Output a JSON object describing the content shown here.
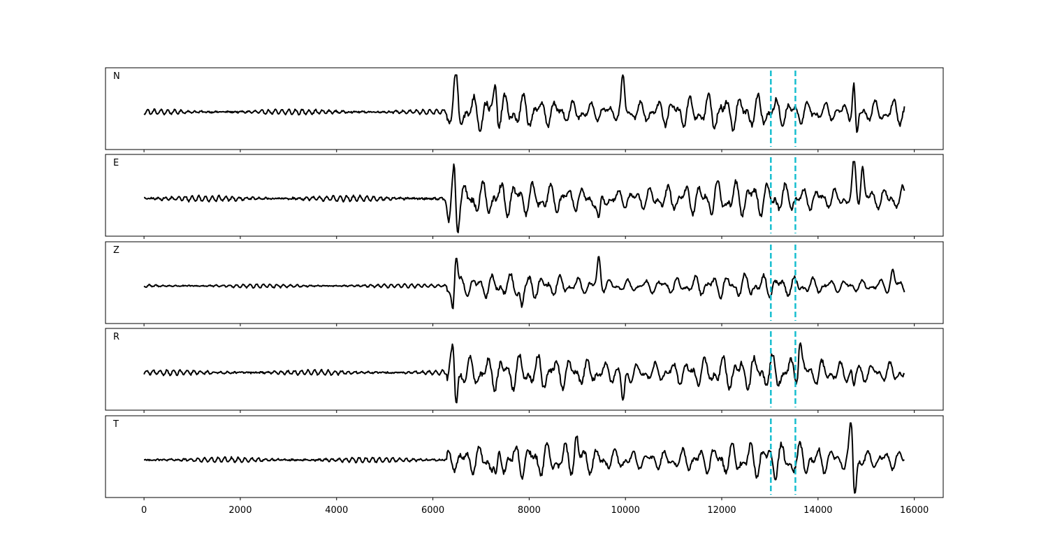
{
  "chart_data": {
    "type": "line",
    "title": "",
    "xlabel": "",
    "ylabel": "",
    "xlim": [
      -800,
      16600
    ],
    "x_ticks": [
      0,
      2000,
      4000,
      6000,
      8000,
      10000,
      12000,
      14000,
      16000
    ],
    "x_tick_labels": [
      "0",
      "2000",
      "4000",
      "6000",
      "8000",
      "10000",
      "12000",
      "14000",
      "16000"
    ],
    "sample_start": 0,
    "sample_end": 15800,
    "signal_onset": 6300,
    "grid": false,
    "colors": {
      "trace": "#000000",
      "marker": "#17becf"
    },
    "markers": [
      {
        "x": 13020,
        "style": "dashed"
      },
      {
        "x": 13530,
        "style": "dashed"
      }
    ],
    "panels": [
      {
        "label": "N",
        "noise_amp": 0.07,
        "signal_amp": 0.45,
        "spikes": [
          [
            6480,
            0.85
          ],
          [
            7300,
            0.75
          ],
          [
            9950,
            0.85
          ],
          [
            14750,
            1.0
          ],
          [
            14800,
            -1.0
          ]
        ]
      },
      {
        "label": "E",
        "noise_amp": 0.08,
        "signal_amp": 0.45,
        "spikes": [
          [
            6330,
            -0.75
          ],
          [
            6450,
            1.0
          ],
          [
            6500,
            -0.8
          ],
          [
            9450,
            -0.8
          ],
          [
            14750,
            1.0
          ],
          [
            14920,
            0.95
          ]
        ]
      },
      {
        "label": "Z",
        "noise_amp": 0.05,
        "signal_amp": 0.3,
        "spikes": [
          [
            6480,
            1.0
          ],
          [
            6420,
            -0.75
          ],
          [
            7850,
            -0.6
          ],
          [
            9450,
            0.8
          ],
          [
            15550,
            0.4
          ]
        ]
      },
      {
        "label": "R",
        "noise_amp": 0.07,
        "signal_amp": 0.45,
        "spikes": [
          [
            6480,
            -0.95
          ],
          [
            6420,
            0.65
          ],
          [
            9950,
            -0.9
          ],
          [
            13620,
            0.95
          ],
          [
            14730,
            -1.0
          ],
          [
            14720,
            0.7
          ]
        ]
      },
      {
        "label": "T",
        "noise_amp": 0.07,
        "signal_amp": 0.45,
        "spikes": [
          [
            7320,
            -0.75
          ],
          [
            8980,
            0.6
          ],
          [
            14690,
            1.0
          ],
          [
            14760,
            -0.95
          ]
        ]
      }
    ]
  }
}
